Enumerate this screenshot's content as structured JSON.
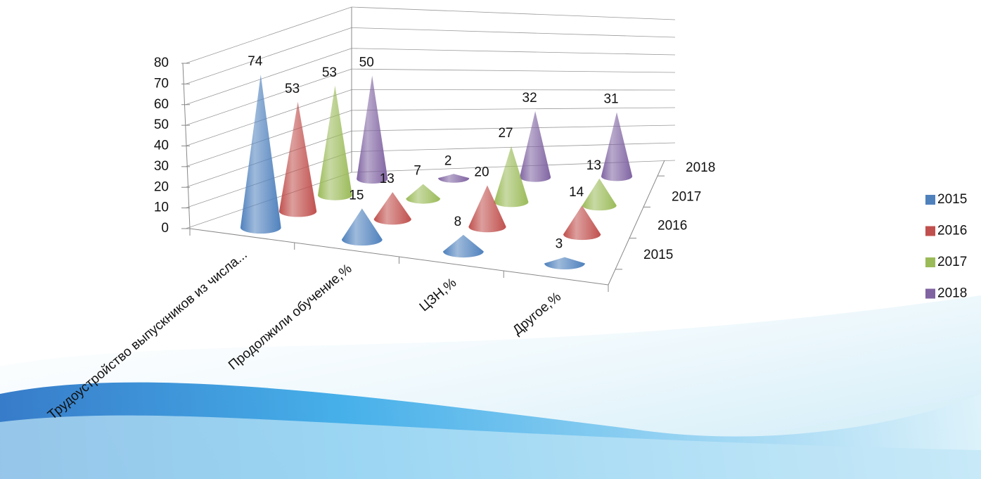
{
  "chart_data": {
    "type": "cone",
    "categories": [
      "Трудоустройство выпускников из числа...",
      "Продолжили обучение,%",
      "ЦЗН,%",
      "Другое,%"
    ],
    "series": [
      {
        "name": "2015",
        "color": "#4f81bd",
        "values": [
          74,
          15,
          8,
          3
        ]
      },
      {
        "name": "2016",
        "color": "#c0504d",
        "values": [
          53,
          13,
          20,
          14
        ]
      },
      {
        "name": "2017",
        "color": "#9bbb59",
        "values": [
          53,
          7,
          27,
          13
        ]
      },
      {
        "name": "2018",
        "color": "#8064a2",
        "values": [
          50,
          2,
          32,
          31
        ]
      }
    ],
    "ylim": [
      0,
      80
    ],
    "yticks": [
      0,
      10,
      20,
      30,
      40,
      50,
      60,
      70,
      80
    ],
    "grid": true,
    "legend": "right"
  }
}
